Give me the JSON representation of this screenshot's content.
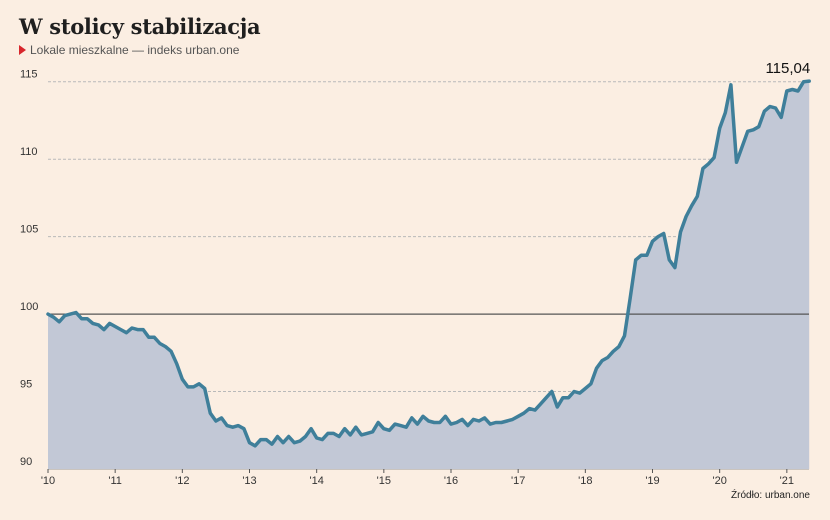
{
  "header": {
    "title": "W stolicy stabilizacja",
    "subtitle": "Lokale mieszkalne — indeks urban.one"
  },
  "footer": {
    "source": "Źródło: urban.one"
  },
  "colors": {
    "line": "#3f7f9a",
    "area": "#c2c8d6",
    "grid": "#b9b9b9",
    "baseline": "#555555",
    "marker": "#d8262c",
    "background": "#fbeee2"
  },
  "chart_data": {
    "type": "area",
    "title": "W stolicy stabilizacja",
    "subtitle": "Lokale mieszkalne — indeks urban.one",
    "ylim": [
      90,
      115.5
    ],
    "yticks": [
      90,
      95,
      100,
      105,
      110,
      115
    ],
    "xlim": [
      2010.0,
      2021.33
    ],
    "xticks": [
      {
        "value": 2010,
        "label": "'10"
      },
      {
        "value": 2011,
        "label": "'11"
      },
      {
        "value": 2012,
        "label": "'12"
      },
      {
        "value": 2013,
        "label": "'13"
      },
      {
        "value": 2014,
        "label": "'14"
      },
      {
        "value": 2015,
        "label": "'15"
      },
      {
        "value": 2016,
        "label": "'16"
      },
      {
        "value": 2017,
        "label": "'17"
      },
      {
        "value": 2018,
        "label": "'18"
      },
      {
        "value": 2019,
        "label": "'19"
      },
      {
        "value": 2020,
        "label": "'20"
      },
      {
        "value": 2021,
        "label": "'21"
      }
    ],
    "reference_line": 100,
    "grid": true,
    "end_label": "115,04",
    "series": [
      {
        "x_start": 2010.0,
        "step": 0.0833333,
        "values": [
          100.0,
          99.8,
          99.5,
          99.9,
          100.0,
          100.1,
          99.7,
          99.7,
          99.4,
          99.3,
          99.0,
          99.4,
          99.2,
          99.0,
          98.8,
          99.1,
          99.0,
          99.0,
          98.5,
          98.5,
          98.1,
          97.9,
          97.6,
          96.8,
          95.8,
          95.3,
          95.3,
          95.5,
          95.2,
          93.6,
          93.1,
          93.3,
          92.8,
          92.7,
          92.8,
          92.6,
          91.7,
          91.5,
          91.9,
          91.9,
          91.6,
          92.1,
          91.7,
          92.1,
          91.7,
          91.8,
          92.1,
          92.6,
          92.0,
          91.9,
          92.3,
          92.3,
          92.1,
          92.6,
          92.2,
          92.7,
          92.2,
          92.3,
          92.4,
          93.0,
          92.6,
          92.5,
          92.9,
          92.8,
          92.7,
          93.3,
          92.9,
          93.4,
          93.1,
          93.0,
          93.0,
          93.4,
          92.9,
          93.0,
          93.2,
          92.8,
          93.2,
          93.1,
          93.3,
          92.9,
          93.0,
          93.0,
          93.1,
          93.2,
          93.4,
          93.6,
          93.9,
          93.8,
          94.2,
          94.6,
          95.0,
          94.0,
          94.6,
          94.6,
          95.0,
          94.9,
          95.2,
          95.5,
          96.5,
          97.0,
          97.2,
          97.6,
          97.9,
          98.6,
          101.0,
          103.5,
          103.8,
          103.8,
          104.7,
          105.0,
          105.2,
          103.5,
          103.0,
          105.3,
          106.3,
          107.0,
          107.6,
          109.4,
          109.7,
          110.1,
          112.0,
          113.0,
          114.8,
          109.8,
          110.8,
          111.8,
          111.9,
          112.1,
          113.1,
          113.4,
          113.3,
          112.7,
          114.4,
          114.5,
          114.4,
          115.0,
          115.04
        ]
      }
    ]
  }
}
